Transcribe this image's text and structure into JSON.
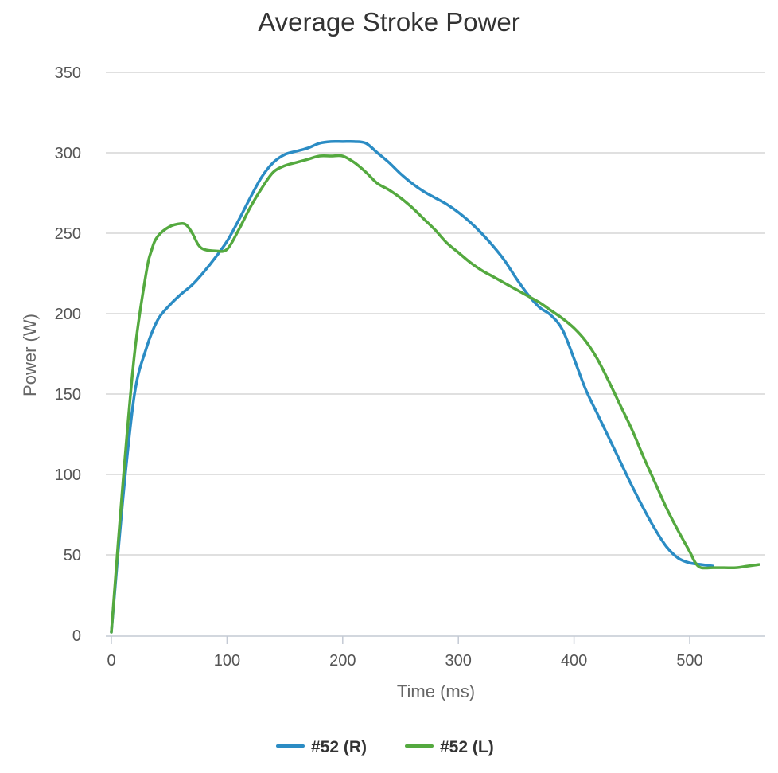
{
  "chart_data": {
    "type": "line",
    "title": "Average Stroke Power",
    "xlabel": "Time (ms)",
    "ylabel": "Power (W)",
    "xlim": [
      0,
      560
    ],
    "ylim": [
      0,
      350
    ],
    "xticks": [
      0,
      100,
      200,
      300,
      400,
      500
    ],
    "yticks": [
      0,
      50,
      100,
      150,
      200,
      250,
      300,
      350
    ],
    "grid": true,
    "legend_position": "bottom-center",
    "series": [
      {
        "name": "#52 (R)",
        "color": "#2b8cc4",
        "x": [
          0,
          10,
          20,
          30,
          40,
          50,
          60,
          70,
          80,
          90,
          100,
          110,
          120,
          130,
          140,
          150,
          160,
          170,
          180,
          190,
          200,
          210,
          220,
          230,
          240,
          250,
          260,
          270,
          280,
          290,
          300,
          310,
          320,
          330,
          340,
          350,
          360,
          370,
          380,
          390,
          400,
          410,
          420,
          430,
          440,
          450,
          460,
          470,
          480,
          490,
          500,
          510,
          520
        ],
        "y": [
          2,
          85,
          150,
          178,
          196,
          205,
          212,
          218,
          226,
          235,
          245,
          258,
          272,
          285,
          294,
          299,
          301,
          303,
          306,
          307,
          307,
          307,
          306,
          300,
          294,
          287,
          281,
          276,
          272,
          268,
          263,
          257,
          250,
          242,
          233,
          222,
          212,
          204,
          199,
          190,
          172,
          153,
          138,
          123,
          108,
          93,
          79,
          66,
          55,
          48,
          45,
          44,
          43
        ]
      },
      {
        "name": "#52 (L)",
        "color": "#54a93f",
        "x": [
          0,
          10,
          20,
          30,
          35,
          40,
          50,
          60,
          65,
          70,
          75,
          80,
          90,
          100,
          110,
          120,
          130,
          140,
          150,
          160,
          170,
          180,
          190,
          200,
          210,
          220,
          230,
          240,
          250,
          260,
          270,
          280,
          290,
          300,
          310,
          320,
          330,
          340,
          350,
          360,
          370,
          380,
          390,
          400,
          410,
          420,
          430,
          440,
          450,
          460,
          470,
          480,
          490,
          500,
          505,
          510,
          520,
          530,
          540,
          550,
          560
        ],
        "y": [
          2,
          95,
          175,
          225,
          240,
          248,
          254,
          256,
          255,
          250,
          243,
          240,
          239,
          240,
          252,
          266,
          278,
          288,
          292,
          294,
          296,
          298,
          298,
          298,
          294,
          288,
          281,
          277,
          272,
          266,
          259,
          252,
          244,
          238,
          232,
          227,
          223,
          219,
          215,
          211,
          207,
          202,
          197,
          191,
          183,
          172,
          158,
          143,
          128,
          111,
          95,
          79,
          65,
          52,
          45,
          42,
          42,
          42,
          42,
          43,
          44
        ]
      }
    ]
  }
}
